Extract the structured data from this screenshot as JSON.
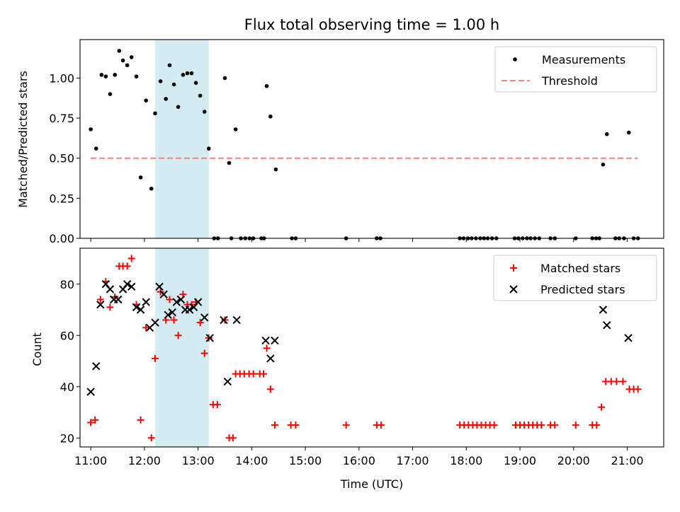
{
  "chart_data": [
    {
      "type": "scatter",
      "title": "Flux total observing time = 1.00 h",
      "xlabel": "",
      "ylabel": "Matched/Predicted stars",
      "xlim": [
        10.8,
        21.68
      ],
      "ylim": [
        0.0,
        1.24
      ],
      "yticks": [
        0.0,
        0.25,
        0.5,
        0.75,
        1.0
      ],
      "ytick_labels": [
        "0.00",
        "0.25",
        "0.50",
        "0.75",
        "1.00"
      ],
      "shaded_span": {
        "x0": 12.2,
        "x1": 13.2,
        "color": "#add8e6"
      },
      "legend": {
        "position": "top-right",
        "entries": [
          "Measurements",
          "Threshold"
        ]
      },
      "series": [
        {
          "name": "Measurements",
          "color": "#000000",
          "marker": "dot",
          "x": [
            11.0,
            11.1,
            11.2,
            11.28,
            11.36,
            11.45,
            11.53,
            11.6,
            11.68,
            11.76,
            11.85,
            11.93,
            12.03,
            12.13,
            12.2,
            12.3,
            12.4,
            12.47,
            12.55,
            12.63,
            12.72,
            12.8,
            12.88,
            12.96,
            13.04,
            13.12,
            13.2,
            13.5,
            13.58,
            13.7,
            14.28,
            14.35,
            14.45,
            13.3,
            13.37,
            13.62,
            13.8,
            13.88,
            13.96,
            14.03,
            14.18,
            14.23,
            14.75,
            14.82,
            15.76,
            16.33,
            16.4,
            17.88,
            17.95,
            18.03,
            18.1,
            18.18,
            18.26,
            18.33,
            18.4,
            18.48,
            18.56,
            18.9,
            18.97,
            19.05,
            19.13,
            19.2,
            19.28,
            19.36,
            19.57,
            19.65,
            20.04,
            20.35,
            20.42,
            20.48,
            20.55,
            20.62,
            20.78,
            20.85,
            20.94,
            21.03,
            21.12,
            21.2
          ],
          "y": [
            0.68,
            0.56,
            1.02,
            1.01,
            0.9,
            1.02,
            1.17,
            1.11,
            1.08,
            1.13,
            1.01,
            0.38,
            0.86,
            0.31,
            0.78,
            0.98,
            0.87,
            1.08,
            0.96,
            0.82,
            1.02,
            1.03,
            1.03,
            0.97,
            0.89,
            0.79,
            0.56,
            1.0,
            0.47,
            0.68,
            0.95,
            0.76,
            0.43,
            0.0,
            0.0,
            0.0,
            0.0,
            0.0,
            0.0,
            0.0,
            0.0,
            0.0,
            0.0,
            0.0,
            0.0,
            0.0,
            0.0,
            0.0,
            0.0,
            0.0,
            0.0,
            0.0,
            0.0,
            0.0,
            0.0,
            0.0,
            0.0,
            0.0,
            0.0,
            0.0,
            0.0,
            0.0,
            0.0,
            0.0,
            0.0,
            0.0,
            0.0,
            0.0,
            0.0,
            0.0,
            0.46,
            0.65,
            0.0,
            0.0,
            0.0,
            0.66,
            0.0,
            0.0
          ]
        },
        {
          "name": "Threshold",
          "color": "#ff7f7f",
          "style": "dashed",
          "x": [
            11.0,
            21.2
          ],
          "y": [
            0.5,
            0.5
          ]
        }
      ]
    },
    {
      "type": "scatter",
      "title": "",
      "xlabel": "Time (UTC)",
      "ylabel": "Count",
      "xlim": [
        10.8,
        21.68
      ],
      "ylim": [
        16.5,
        94.0
      ],
      "yticks": [
        20,
        40,
        60,
        80
      ],
      "ytick_labels": [
        "20",
        "40",
        "60",
        "80"
      ],
      "xticks": [
        11,
        12,
        13,
        14,
        15,
        16,
        17,
        18,
        19,
        20,
        21
      ],
      "xtick_labels": [
        "11:00",
        "12:00",
        "13:00",
        "14:00",
        "15:00",
        "16:00",
        "17:00",
        "18:00",
        "19:00",
        "20:00",
        "21:00"
      ],
      "shaded_span": {
        "x0": 12.2,
        "x1": 13.2,
        "color": "#add8e6"
      },
      "legend": {
        "position": "top-right",
        "entries": [
          "Matched stars",
          "Predicted stars"
        ]
      },
      "series": [
        {
          "name": "Matched stars",
          "color": "#ff0000",
          "marker": "plus",
          "x": [
            11.0,
            11.08,
            11.18,
            11.28,
            11.36,
            11.45,
            11.53,
            11.6,
            11.68,
            11.76,
            11.85,
            11.93,
            12.03,
            12.13,
            12.2,
            12.3,
            12.4,
            12.47,
            12.55,
            12.63,
            12.72,
            12.8,
            12.88,
            12.96,
            13.04,
            13.12,
            13.2,
            13.28,
            13.36,
            13.5,
            13.58,
            13.65,
            13.7,
            13.78,
            13.86,
            13.95,
            14.03,
            14.15,
            14.22,
            14.28,
            14.35,
            14.43,
            14.73,
            14.82,
            15.76,
            16.33,
            16.41,
            17.88,
            17.96,
            18.04,
            18.12,
            18.2,
            18.28,
            18.36,
            18.44,
            18.52,
            18.92,
            19.0,
            19.08,
            19.16,
            19.24,
            19.32,
            19.4,
            19.57,
            19.65,
            20.04,
            20.35,
            20.43,
            20.52,
            20.6,
            20.7,
            20.8,
            20.92,
            21.04,
            21.12,
            21.2
          ],
          "y": [
            26,
            27,
            74,
            81,
            71,
            75,
            87,
            87,
            87,
            90,
            72,
            27,
            63,
            20,
            51,
            77,
            66,
            74,
            66,
            60,
            76,
            72,
            72,
            73,
            65,
            53,
            59,
            33,
            33,
            66,
            20,
            20,
            45,
            45,
            45,
            45,
            45,
            45,
            45,
            55,
            39,
            25,
            25,
            25,
            25,
            25,
            25,
            25,
            25,
            25,
            25,
            25,
            25,
            25,
            25,
            25,
            25,
            25,
            25,
            25,
            25,
            25,
            25,
            25,
            25,
            25,
            25,
            25,
            32,
            42,
            42,
            42,
            42,
            39,
            39,
            39
          ]
        },
        {
          "name": "Predicted stars",
          "color": "#000000",
          "marker": "x",
          "x": [
            11.0,
            11.1,
            11.18,
            11.28,
            11.36,
            11.43,
            11.51,
            11.6,
            11.68,
            11.76,
            11.85,
            11.93,
            12.03,
            12.1,
            12.2,
            12.28,
            12.36,
            12.44,
            12.52,
            12.6,
            12.68,
            12.76,
            12.84,
            12.92,
            13.0,
            13.12,
            13.22,
            13.48,
            13.55,
            13.72,
            14.26,
            14.35,
            14.43,
            20.55,
            20.62,
            21.02
          ],
          "y": [
            38,
            48,
            72,
            80,
            78,
            74,
            74,
            78,
            80,
            79,
            71,
            70,
            73,
            63,
            65,
            79,
            76,
            68,
            69,
            73,
            74,
            70,
            70,
            71,
            73,
            67,
            59,
            66,
            42,
            66,
            58,
            51,
            58,
            70,
            64,
            59
          ]
        }
      ]
    }
  ]
}
